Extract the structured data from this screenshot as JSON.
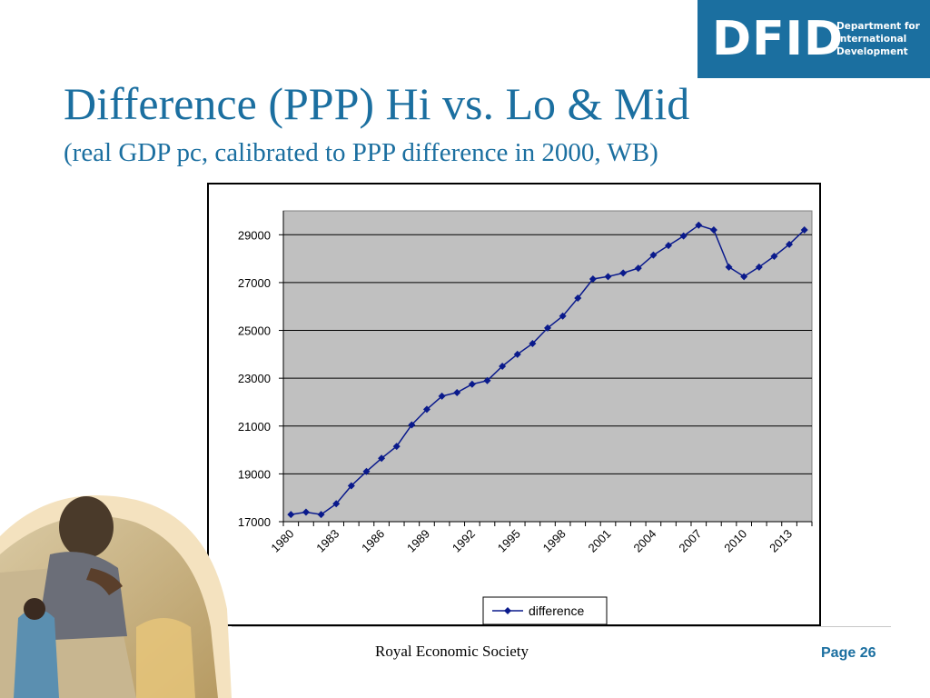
{
  "logo": {
    "wordmark": "DFID",
    "lines": [
      "Department for",
      "International",
      "Development"
    ]
  },
  "slide": {
    "title": "Difference (PPP) Hi vs. Lo & Mid",
    "subtitle": "(real GDP pc, calibrated to PPP difference in 2000, WB)"
  },
  "footer": {
    "society": "Royal Economic Society",
    "page": "Page 26"
  },
  "colors": {
    "brand_blue": "#1b6fa0",
    "series": "#0a1a8c",
    "plot_bg": "#c0c0c0"
  },
  "chart_data": {
    "type": "line",
    "title": "",
    "xlabel": "",
    "ylabel": "",
    "ylim": [
      17000,
      30000
    ],
    "yticks": [
      17000,
      19000,
      21000,
      23000,
      25000,
      27000,
      29000
    ],
    "xticks": [
      "1980",
      "1983",
      "1986",
      "1989",
      "1992",
      "1995",
      "1998",
      "2001",
      "2004",
      "2007",
      "2010",
      "2013"
    ],
    "grid": "horizontal",
    "legend_position": "bottom-center",
    "series": [
      {
        "name": "difference",
        "marker": "diamond",
        "x": [
          1980,
          1981,
          1982,
          1983,
          1984,
          1985,
          1986,
          1987,
          1988,
          1989,
          1990,
          1991,
          1992,
          1993,
          1994,
          1995,
          1996,
          1997,
          1998,
          1999,
          2000,
          2001,
          2002,
          2003,
          2004,
          2005,
          2006,
          2007,
          2008,
          2009,
          2010,
          2011,
          2012,
          2013,
          2014
        ],
        "values": [
          17300,
          17400,
          17300,
          17750,
          18500,
          19100,
          19650,
          20150,
          21050,
          21700,
          22250,
          22400,
          22750,
          22900,
          23500,
          24000,
          24450,
          25100,
          25600,
          26350,
          27150,
          27250,
          27400,
          27600,
          28150,
          28550,
          28950,
          29400,
          29200,
          27650,
          27250,
          27650,
          28100,
          28600,
          29200
        ]
      }
    ]
  }
}
